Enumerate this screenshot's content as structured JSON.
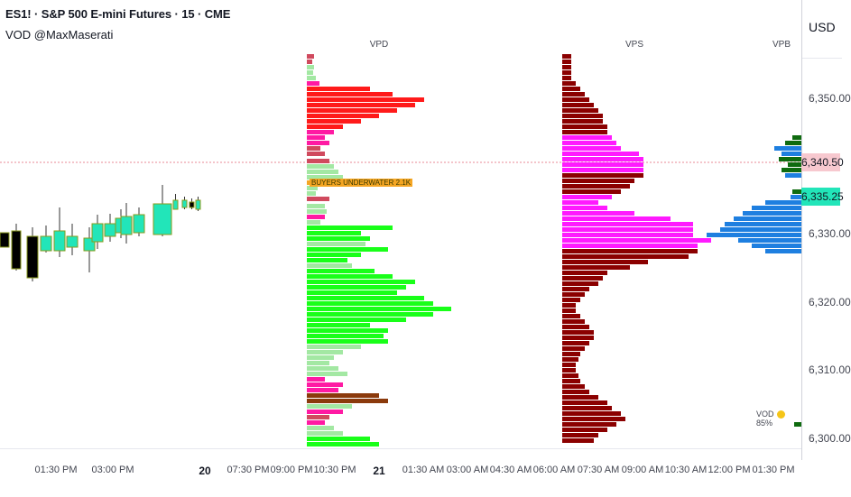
{
  "header": {
    "title": "ES1! · S&P 500 E-mini Futures · 15 · CME",
    "subtitle": "VOD @MaxMaserati"
  },
  "price_axis": {
    "currency": "USD",
    "labels": [
      "6,350.00",
      "6,330.00",
      "6,320.00",
      "6,310.00",
      "6,300.00"
    ],
    "current_price_badge": {
      "value": "6,340.50",
      "color": "#f7c8cf"
    },
    "last_price_badge": {
      "value": "6,335.25",
      "color": "#22e5b9"
    }
  },
  "time_axis": {
    "labels": [
      "01:30 PM",
      "03:00 PM",
      "20",
      "07:30 PM",
      "09:00 PM",
      "10:30 PM",
      "21",
      "01:30 AM",
      "03:00 AM",
      "04:30 AM",
      "06:00 AM",
      "07:30 AM",
      "09:00 AM",
      "10:30 AM",
      "12:00 PM",
      "01:30 PM"
    ],
    "bold_labels": [
      "20",
      "21"
    ]
  },
  "profiles": {
    "vpd": {
      "title": "VPD",
      "note": "BUYERS UNDERWATER 2.1K"
    },
    "vps": {
      "title": "VPS"
    },
    "vpb": {
      "title": "VPB"
    }
  },
  "vod_legend": {
    "label": "VOD",
    "percent": "85%"
  },
  "colors": {
    "bull_candle": "#22e5b9",
    "bear_candle": "#000000",
    "candle_border": "#8a9a1a",
    "vpd_sell": "#ff1a1a",
    "vpd_buy": "#19ff19",
    "vpd_magenta": "#ff1aa3",
    "vpd_pale_green": "#a3e8a3",
    "vpd_pale_red": "#d04a5e",
    "vpd_brown": "#8b3a0c",
    "vpd_orange": "#f5a623",
    "vps_bar": "#8b0000",
    "vps_value_area": "#ff1aff",
    "vpb_bar": "#1e7fe0",
    "vpb_green": "#0f6b0f",
    "current_price_line": "#e88a94"
  }
}
